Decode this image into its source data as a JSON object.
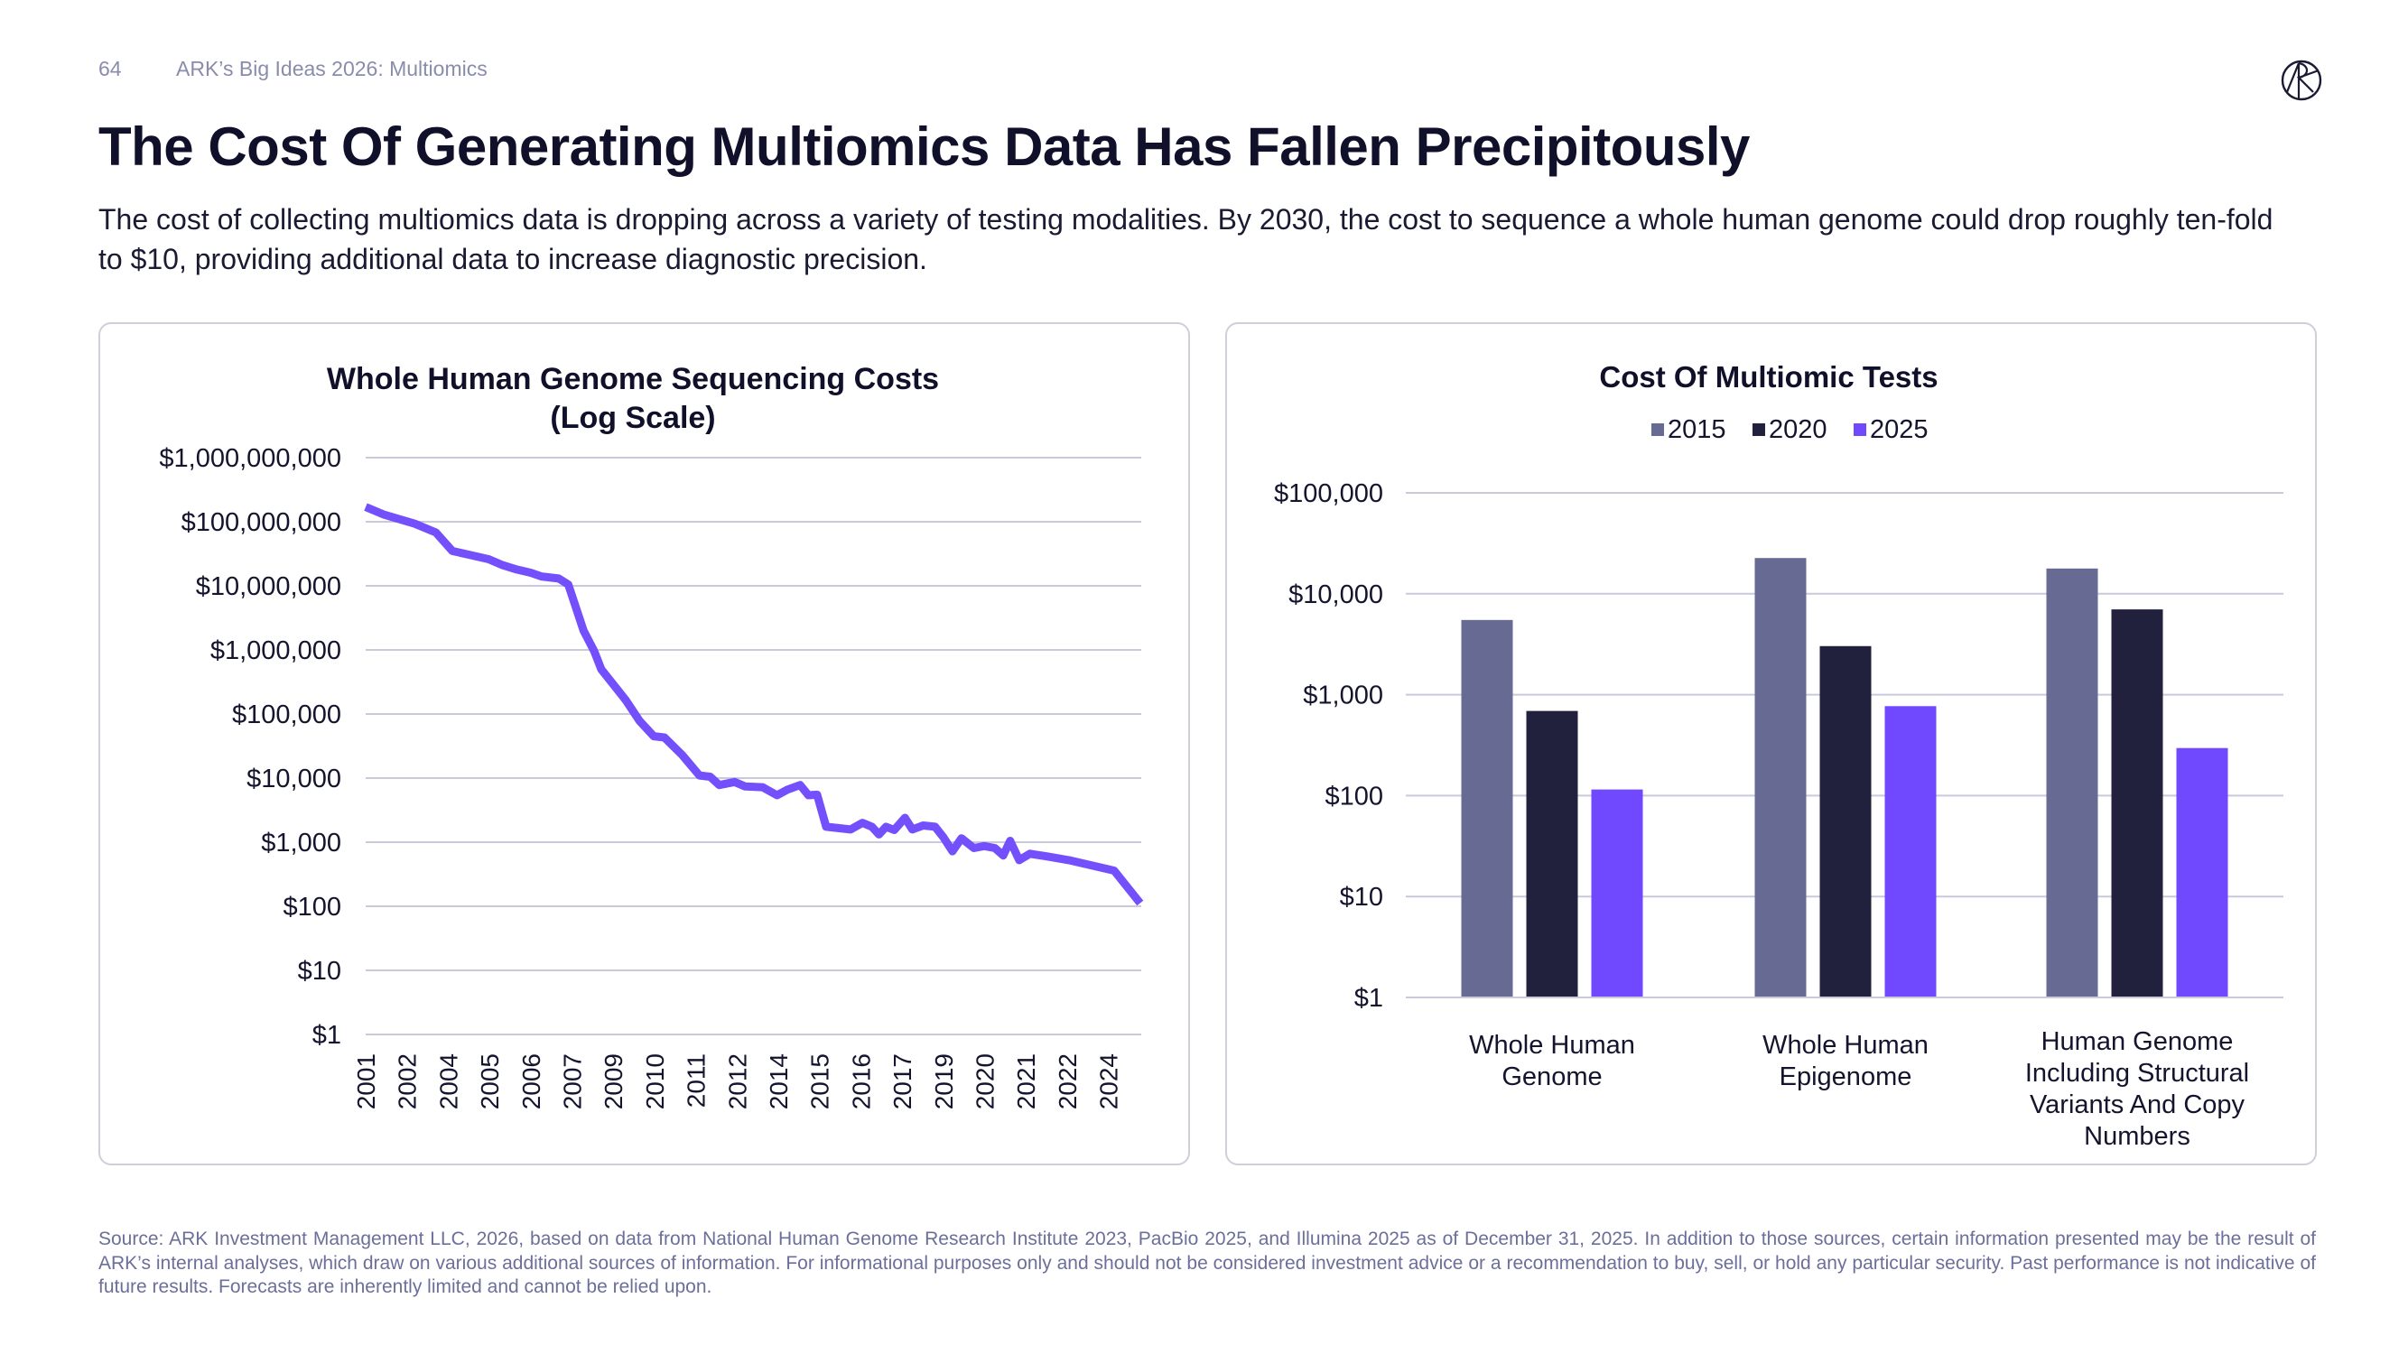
{
  "header": {
    "page_number": "64",
    "section": "ARK’s Big Ideas 2026: Multiomics",
    "logo_text": "ARK"
  },
  "title": "The Cost Of Generating Multiomics Data Has Fallen Precipitously",
  "subtitle": "The cost of collecting multiomics data is dropping across a variety of testing modalities. By 2030, the cost to sequence a whole human genome could drop roughly ten-fold to $10, providing additional data to increase diagnostic precision.",
  "footer": "Source: ARK Investment Management LLC, 2026, based on data from National Human Genome Research Institute 2023, PacBio 2025, and  Illumina 2025 as of December 31, 2025.  In addition to those sources, certain information presented may be the result of ARK’s internal analyses, which draw on various additional sources of information. For informational purposes only and should not be considered investment advice or a recommendation to buy, sell, or hold any particular security. Past performance is not indicative of future results. Forecasts are inherently limited and cannot be relied upon.",
  "colors": {
    "line": "#7350fb",
    "s2015": "#676b94",
    "s2020": "#21213e",
    "s2025": "#7049ff",
    "grid": "#c9c9d9"
  },
  "chart_data": [
    {
      "type": "line",
      "title": "Whole Human Genome Sequencing Costs",
      "title_line2": "(Log Scale)",
      "y_scale": "log",
      "ylim": [
        1,
        1000000000
      ],
      "y_ticks": [
        {
          "value": 1000000000,
          "label": "$1,000,000,000"
        },
        {
          "value": 100000000,
          "label": "$100,000,000"
        },
        {
          "value": 10000000,
          "label": "$10,000,000"
        },
        {
          "value": 1000000,
          "label": "$1,000,000"
        },
        {
          "value": 100000,
          "label": "$100,000"
        },
        {
          "value": 10000,
          "label": "$10,000"
        },
        {
          "value": 1000,
          "label": "$1,000"
        },
        {
          "value": 100,
          "label": "$100"
        },
        {
          "value": 10,
          "label": "$10"
        },
        {
          "value": 1,
          "label": "$1"
        }
      ],
      "x_tick_labels": [
        "2001",
        "2002",
        "2004",
        "2005",
        "2006",
        "2007",
        "2009",
        "2010",
        "2011",
        "2012",
        "2014",
        "2015",
        "2016",
        "2017",
        "2019",
        "2020",
        "2021",
        "2022",
        "2024"
      ],
      "grid": true,
      "series": [
        {
          "points": [
            [
              0,
              170000000
            ],
            [
              0.43,
              130000000
            ],
            [
              1.19,
              93000000
            ],
            [
              1.7,
              68000000
            ],
            [
              2.1,
              35000000
            ],
            [
              2.56,
              30000000
            ],
            [
              2.98,
              26000000
            ],
            [
              3.32,
              21000000
            ],
            [
              3.66,
              18000000
            ],
            [
              4.0,
              16000000
            ],
            [
              4.26,
              14000000
            ],
            [
              4.68,
              13000000
            ],
            [
              4.91,
              10500000
            ],
            [
              5.28,
              2000000
            ],
            [
              5.54,
              950000
            ],
            [
              5.71,
              500000
            ],
            [
              6.3,
              166000
            ],
            [
              6.64,
              78000
            ],
            [
              6.98,
              45000
            ],
            [
              7.24,
              43000
            ],
            [
              7.67,
              23000
            ],
            [
              8.09,
              11000
            ],
            [
              8.35,
              10500
            ],
            [
              8.57,
              7800
            ],
            [
              8.94,
              8700
            ],
            [
              9.2,
              7400
            ],
            [
              9.62,
              7200
            ],
            [
              9.97,
              5400
            ],
            [
              10.22,
              6600
            ],
            [
              10.53,
              7800
            ],
            [
              10.73,
              5400
            ],
            [
              10.94,
              5500
            ],
            [
              11.16,
              1740
            ],
            [
              11.75,
              1580
            ],
            [
              12.04,
              2000
            ],
            [
              12.27,
              1740
            ],
            [
              12.44,
              1320
            ],
            [
              12.61,
              1740
            ],
            [
              12.81,
              1550
            ],
            [
              13.07,
              2400
            ],
            [
              13.25,
              1580
            ],
            [
              13.51,
              1820
            ],
            [
              13.8,
              1740
            ],
            [
              14.0,
              1200
            ],
            [
              14.22,
              720
            ],
            [
              14.44,
              1150
            ],
            [
              14.74,
              810
            ],
            [
              14.99,
              870
            ],
            [
              15.25,
              810
            ],
            [
              15.45,
              620
            ],
            [
              15.62,
              1050
            ],
            [
              15.84,
              525
            ],
            [
              16.1,
              660
            ],
            [
              16.52,
              600
            ],
            [
              17.04,
              525
            ],
            [
              17.55,
              440
            ],
            [
              18.14,
              360
            ],
            [
              18.77,
              112
            ]
          ]
        }
      ]
    },
    {
      "type": "bar",
      "title": "Cost Of Multiomic Tests",
      "y_scale": "log",
      "ylim": [
        1,
        100000
      ],
      "y_ticks": [
        {
          "value": 100000,
          "label": "$100,000"
        },
        {
          "value": 10000,
          "label": "$10,000"
        },
        {
          "value": 1000,
          "label": "$1,000"
        },
        {
          "value": 100,
          "label": "$100"
        },
        {
          "value": 10,
          "label": "$10"
        },
        {
          "value": 1,
          "label": "$1"
        }
      ],
      "grid": true,
      "legend_position": "top",
      "categories": [
        [
          "Whole Human",
          "Genome"
        ],
        [
          "Whole Human",
          "Epigenome"
        ],
        [
          "Human Genome",
          "Including Structural",
          "Variants And Copy",
          "Numbers"
        ]
      ],
      "series": [
        {
          "name": "2015",
          "color": "#676b94",
          "values": [
            5500,
            22600,
            17800
          ]
        },
        {
          "name": "2020",
          "color": "#21213e",
          "values": [
            690,
            3030,
            7000
          ]
        },
        {
          "name": "2025",
          "color": "#7049ff",
          "values": [
            115,
            770,
            296
          ]
        }
      ]
    }
  ]
}
